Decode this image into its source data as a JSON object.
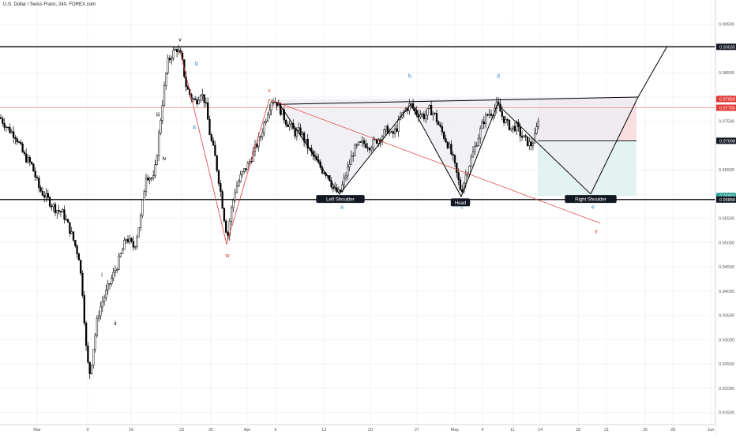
{
  "header": {
    "symbol_title": "U.S. Dollar / Swiss Franc, 240, FOREX.com"
  },
  "colors": {
    "candle": "#000000",
    "grid": "#f0f3fa",
    "hline": "#000000",
    "price_line": "#f28b82",
    "wave_blue": "#1e88c8",
    "wave_red": "#e53935",
    "short_zone": "#f9d9dc",
    "target_zone": "#dff2f0",
    "pattern_fill": "#eeeef2",
    "axis_text": "#555555"
  },
  "chart_data": {
    "type": "candlestick",
    "instrument": "U.S. Dollar / Swiss Franc",
    "timeframe": "240",
    "ylim": [
      0.9125,
      1.0
    ],
    "xlim": [
      0,
      932
    ],
    "x_ticks": [
      {
        "label": "Mar",
        "t": 47
      },
      {
        "label": "9",
        "t": 111
      },
      {
        "label": "16",
        "t": 166
      },
      {
        "label": "23",
        "t": 230
      },
      {
        "label": "26",
        "t": 267
      },
      {
        "label": "Apr",
        "t": 313
      },
      {
        "label": "6",
        "t": 349
      },
      {
        "label": "13",
        "t": 410
      },
      {
        "label": "20",
        "t": 469
      },
      {
        "label": "27",
        "t": 528
      },
      {
        "label": "May",
        "t": 576
      },
      {
        "label": "4",
        "t": 611
      },
      {
        "label": "11",
        "t": 649
      },
      {
        "label": "14",
        "t": 684
      },
      {
        "label": "18",
        "t": 732
      },
      {
        "label": "21",
        "t": 768
      },
      {
        "label": "25",
        "t": 817
      },
      {
        "label": "28",
        "t": 852
      },
      {
        "label": "Jun",
        "t": 900
      }
    ],
    "y_ticks": [
      "0.99500",
      "0.98500",
      "0.98000",
      "0.97500",
      "0.96500",
      "0.96000",
      "0.95500",
      "0.95000",
      "0.94500",
      "0.94000",
      "0.93500",
      "0.93000",
      "0.92500",
      "0.92000",
      "0.91500"
    ],
    "price_labels": [
      {
        "text": "0.99035",
        "value": 0.99035,
        "style": "dark"
      },
      {
        "text": "0.97959",
        "value": 0.97959,
        "style": "red"
      },
      {
        "text": "0.97780",
        "value": 0.9778,
        "style": "red"
      },
      {
        "text": "0.97098",
        "value": 0.97098,
        "style": "dark"
      },
      {
        "text": "0.95958",
        "value": 0.95958,
        "style": "teal"
      },
      {
        "text": "0.95888",
        "value": 0.95888,
        "style": "dark"
      }
    ],
    "horizontal_lines": [
      0.99035,
      0.95888
    ],
    "current_price": 0.9778,
    "price_path": [
      [
        0,
        0.9758
      ],
      [
        10,
        0.9735
      ],
      [
        20,
        0.972
      ],
      [
        30,
        0.968
      ],
      [
        40,
        0.966
      ],
      [
        50,
        0.961
      ],
      [
        60,
        0.959
      ],
      [
        70,
        0.957
      ],
      [
        80,
        0.956
      ],
      [
        90,
        0.952
      ],
      [
        100,
        0.947
      ],
      [
        105,
        0.939
      ],
      [
        110,
        0.926
      ],
      [
        114,
        0.923
      ],
      [
        118,
        0.928
      ],
      [
        124,
        0.935
      ],
      [
        130,
        0.938
      ],
      [
        140,
        0.942
      ],
      [
        150,
        0.946
      ],
      [
        160,
        0.951
      ],
      [
        170,
        0.949
      ],
      [
        178,
        0.955
      ],
      [
        185,
        0.964
      ],
      [
        195,
        0.963
      ],
      [
        205,
        0.978
      ],
      [
        212,
        0.987
      ],
      [
        218,
        0.989
      ],
      [
        224,
        0.99
      ],
      [
        230,
        0.988
      ],
      [
        236,
        0.982
      ],
      [
        242,
        0.98
      ],
      [
        248,
        0.979
      ],
      [
        254,
        0.981
      ],
      [
        260,
        0.979
      ],
      [
        266,
        0.972
      ],
      [
        272,
        0.968
      ],
      [
        278,
        0.962
      ],
      [
        284,
        0.955
      ],
      [
        288,
        0.951
      ],
      [
        292,
        0.956
      ],
      [
        298,
        0.961
      ],
      [
        306,
        0.964
      ],
      [
        314,
        0.966
      ],
      [
        322,
        0.969
      ],
      [
        330,
        0.972
      ],
      [
        338,
        0.9765
      ],
      [
        344,
        0.9795
      ],
      [
        350,
        0.979
      ],
      [
        356,
        0.977
      ],
      [
        362,
        0.975
      ],
      [
        368,
        0.974
      ],
      [
        374,
        0.9725
      ],
      [
        380,
        0.973
      ],
      [
        386,
        0.971
      ],
      [
        392,
        0.969
      ],
      [
        400,
        0.967
      ],
      [
        408,
        0.965
      ],
      [
        416,
        0.964
      ],
      [
        422,
        0.961
      ],
      [
        430,
        0.96
      ],
      [
        436,
        0.963
      ],
      [
        442,
        0.966
      ],
      [
        448,
        0.969
      ],
      [
        454,
        0.97
      ],
      [
        460,
        0.9705
      ],
      [
        468,
        0.97
      ],
      [
        476,
        0.971
      ],
      [
        484,
        0.972
      ],
      [
        490,
        0.9735
      ],
      [
        496,
        0.972
      ],
      [
        502,
        0.9735
      ],
      [
        508,
        0.976
      ],
      [
        514,
        0.9775
      ],
      [
        520,
        0.9785
      ],
      [
        526,
        0.977
      ],
      [
        532,
        0.9765
      ],
      [
        538,
        0.976
      ],
      [
        544,
        0.9775
      ],
      [
        550,
        0.9765
      ],
      [
        556,
        0.974
      ],
      [
        562,
        0.972
      ],
      [
        568,
        0.97
      ],
      [
        574,
        0.967
      ],
      [
        580,
        0.963
      ],
      [
        584,
        0.9605
      ],
      [
        590,
        0.964
      ],
      [
        596,
        0.967
      ],
      [
        602,
        0.97
      ],
      [
        606,
        0.972
      ],
      [
        612,
        0.975
      ],
      [
        618,
        0.9765
      ],
      [
        624,
        0.977
      ],
      [
        630,
        0.9785
      ],
      [
        636,
        0.976
      ],
      [
        642,
        0.9745
      ],
      [
        648,
        0.9735
      ],
      [
        654,
        0.974
      ],
      [
        660,
        0.972
      ],
      [
        666,
        0.971
      ],
      [
        672,
        0.97
      ],
      [
        678,
        0.972
      ],
      [
        684,
        0.9778
      ]
    ],
    "patterns": {
      "head_and_shoulders_fill": [
        [
          341,
          0.9795
        ],
        [
          430,
          0.96
        ],
        [
          520,
          0.9785
        ],
        [
          584,
          0.9595
        ],
        [
          630,
          0.9785
        ],
        [
          748,
          0.96
        ],
        [
          808,
          0.98
        ]
      ],
      "neckline": [
        [
          352,
          0.9785
        ],
        [
          808,
          0.98
        ]
      ],
      "projection": [
        [
          748,
          0.96
        ],
        [
          808,
          0.98
        ],
        [
          845,
          0.9905
        ]
      ],
      "abcd_path": [
        [
          352,
          0.979
        ],
        [
          430,
          0.96
        ],
        [
          520,
          0.9785
        ],
        [
          584,
          0.9595
        ],
        [
          630,
          0.9785
        ],
        [
          748,
          0.96
        ]
      ],
      "red_wave_path": [
        [
          228,
          0.9895
        ],
        [
          287,
          0.9497
        ],
        [
          341,
          0.9795
        ],
        [
          760,
          0.954
        ]
      ],
      "red_channel": [
        [
          341,
          0.9795
        ],
        [
          760,
          0.954
        ]
      ]
    },
    "zones": {
      "short_stop": {
        "x1": 681,
        "x2": 806,
        "y_top": 0.97959,
        "y_bottom": 0.971
      },
      "short_target": {
        "x1": 681,
        "x2": 806,
        "y_top": 0.971,
        "y_bottom": 0.95958
      },
      "entry_line": {
        "x1": 681,
        "x2": 806,
        "y": 0.97098
      }
    },
    "labels": {
      "wave_top": {
        "text": "v",
        "x": 228,
        "y": 0.9915
      },
      "wave_b1": {
        "text": "b",
        "x": 249,
        "y": 0.9865
      },
      "wave_a1": {
        "text": "a",
        "x": 246,
        "y": 0.9735
      },
      "wave_iii": {
        "text": "iii",
        "x": 200,
        "y": 0.976
      },
      "wave_iv": {
        "text": "iv",
        "x": 208,
        "y": 0.967
      },
      "wave_ii_low": {
        "text": "ii",
        "x": 146,
        "y": 0.933
      },
      "wave_i": {
        "text": "i",
        "x": 129,
        "y": 0.943
      },
      "wave_x": {
        "text": "x",
        "x": 341,
        "y": 0.981
      },
      "wave_w": {
        "text": "w",
        "x": 288,
        "y": 0.947
      },
      "wave_y": {
        "text": "y",
        "x": 755,
        "y": 0.952
      },
      "wave_a2": {
        "text": "a",
        "x": 433,
        "y": 0.957
      },
      "wave_b2": {
        "text": "b",
        "x": 519,
        "y": 0.984
      },
      "wave_c2": {
        "text": "c",
        "x": 585,
        "y": 0.957
      },
      "wave_d2": {
        "text": "d",
        "x": 631,
        "y": 0.984
      },
      "wave_e2": {
        "text": "e",
        "x": 751,
        "y": 0.957
      }
    },
    "tags": {
      "left_shoulder": {
        "text": "Left Shoulder",
        "x": 431,
        "y": 0.959
      },
      "head": {
        "text": "Head",
        "x": 583,
        "y": 0.9583
      },
      "right_shoulder": {
        "text": "Right Shoulder",
        "x": 748,
        "y": 0.959
      }
    }
  }
}
